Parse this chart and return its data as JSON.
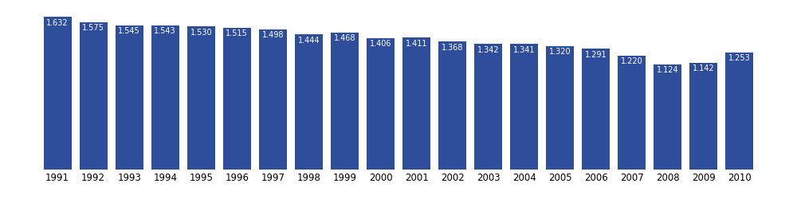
{
  "years": [
    1991,
    1992,
    1993,
    1994,
    1995,
    1996,
    1997,
    1998,
    1999,
    2000,
    2001,
    2002,
    2003,
    2004,
    2005,
    2006,
    2007,
    2008,
    2009,
    2010
  ],
  "values": [
    1632,
    1575,
    1545,
    1543,
    1530,
    1515,
    1498,
    1444,
    1468,
    1406,
    1411,
    1368,
    1342,
    1341,
    1320,
    1291,
    1220,
    1124,
    1142,
    1253
  ],
  "labels": [
    "1.632",
    "1.575",
    "1.545",
    "1.543",
    "1.530",
    "1.515",
    "1.498",
    "1.444",
    "1.468",
    "1.406",
    "1.411",
    "1.368",
    "1.342",
    "1.341",
    "1.320",
    "1.291",
    "1.220",
    "1.124",
    "1.142",
    "1.253"
  ],
  "bar_color": "#2e4d9b",
  "text_color": "#ffffff",
  "background_color": "#ffffff",
  "label_fontsize": 7.0,
  "tick_fontsize": 8.5,
  "bar_width": 0.78,
  "ylim_max": 1750
}
